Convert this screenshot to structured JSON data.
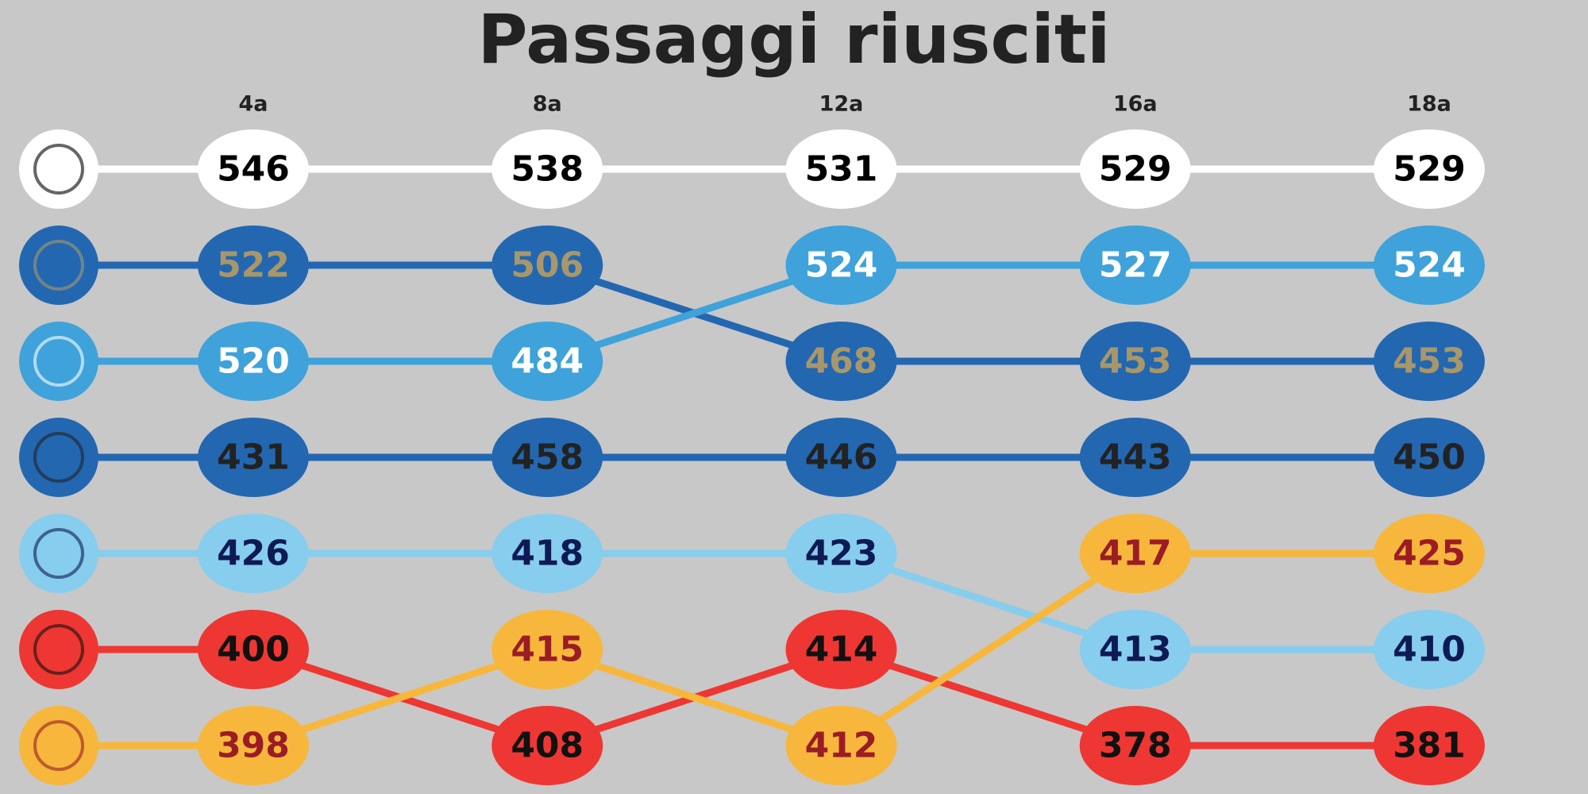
{
  "chart_data": {
    "type": "bump",
    "title": "Passaggi riusciti",
    "categories": [
      "4a",
      "8a",
      "12a",
      "16a",
      "18a"
    ],
    "series": [
      {
        "color": "#ffffff",
        "label_color": "#000000",
        "values": [
          546,
          538,
          531,
          529,
          529
        ]
      },
      {
        "color": "#2367b1",
        "label_color": "#a8976a",
        "values": [
          522,
          506,
          468,
          453,
          453
        ]
      },
      {
        "color": "#3fa2da",
        "label_color": "#ffffff",
        "values": [
          520,
          484,
          524,
          527,
          524
        ]
      },
      {
        "color": "#2367b1",
        "label_color": "#222222",
        "values": [
          431,
          458,
          446,
          443,
          450
        ]
      },
      {
        "color": "#87cdee",
        "label_color": "#0d1a55",
        "values": [
          426,
          418,
          423,
          413,
          410
        ]
      },
      {
        "color": "#ee3732",
        "label_color": "#111111",
        "values": [
          400,
          408,
          414,
          378,
          381
        ]
      },
      {
        "color": "#f6b73c",
        "label_color": "#9b1c24",
        "values": [
          398,
          415,
          412,
          417,
          425
        ]
      }
    ]
  }
}
